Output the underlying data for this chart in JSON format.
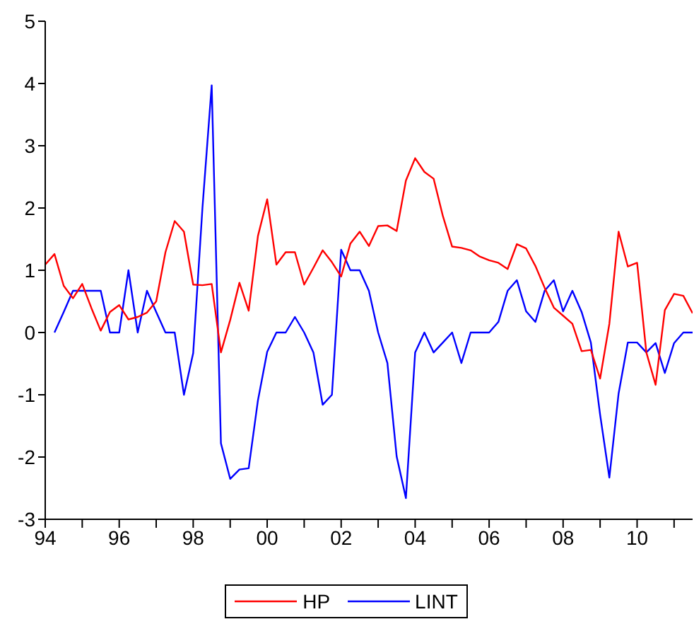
{
  "chart_data": {
    "type": "line",
    "x": [
      1994,
      1994.25,
      1994.5,
      1994.75,
      1995,
      1995.25,
      1995.5,
      1995.75,
      1996,
      1996.25,
      1996.5,
      1996.75,
      1997,
      1997.25,
      1997.5,
      1997.75,
      1998,
      1998.25,
      1998.5,
      1998.75,
      1999,
      1999.25,
      1999.5,
      1999.75,
      2000,
      2000.25,
      2000.5,
      2000.75,
      2001,
      2001.25,
      2001.5,
      2001.75,
      2002,
      2002.25,
      2002.5,
      2002.75,
      2003,
      2003.25,
      2003.5,
      2003.75,
      2004,
      2004.25,
      2004.5,
      2004.75,
      2005,
      2005.25,
      2005.5,
      2005.75,
      2006,
      2006.25,
      2006.5,
      2006.75,
      2007,
      2007.25,
      2007.5,
      2007.75,
      2008,
      2008.25,
      2008.5,
      2008.75,
      2009,
      2009.25,
      2009.5,
      2009.75,
      2010,
      2010.25,
      2010.5,
      2010.75,
      2011,
      2011.25,
      2011.5
    ],
    "series": [
      {
        "name": "LINT",
        "color": "#0000ff",
        "values": [
          null,
          0,
          0.33,
          0.67,
          0.67,
          0.67,
          0.67,
          0,
          0,
          1.0,
          0,
          0.67,
          0.33,
          0,
          0,
          -1.0,
          -0.33,
          2.0,
          3.97,
          -1.78,
          -2.35,
          -2.2,
          -2.18,
          -1.09,
          -0.31,
          0,
          0,
          0.25,
          0,
          -0.32,
          -1.16,
          -1.0,
          1.33,
          1.0,
          1.0,
          0.67,
          0,
          -0.49,
          -1.99,
          -2.66,
          -0.32,
          0,
          -0.32,
          -0.16,
          0,
          -0.49,
          0,
          0,
          0,
          0.17,
          0.67,
          0.84,
          0.34,
          0.17,
          0.67,
          0.84,
          0.34,
          0.67,
          0.33,
          -0.16,
          -1.32,
          -2.33,
          -0.98,
          -0.16,
          -0.16,
          -0.32,
          -0.17,
          -0.65,
          -0.17,
          0,
          0
        ]
      },
      {
        "name": "HP",
        "color": "#ff0000",
        "values": [
          1.09,
          1.26,
          0.75,
          0.55,
          0.78,
          0.39,
          0.03,
          0.33,
          0.44,
          0.21,
          0.25,
          0.32,
          0.5,
          1.29,
          1.79,
          1.62,
          0.77,
          0.76,
          0.78,
          -0.32,
          0.2,
          0.8,
          0.35,
          1.55,
          2.14,
          1.09,
          1.29,
          1.29,
          0.77,
          1.04,
          1.32,
          1.13,
          0.9,
          1.43,
          1.62,
          1.39,
          1.71,
          1.72,
          1.63,
          2.44,
          2.8,
          2.58,
          2.47,
          1.87,
          1.38,
          1.36,
          1.32,
          1.22,
          1.16,
          1.12,
          1.02,
          1.42,
          1.35,
          1.07,
          0.72,
          0.4,
          0.27,
          0.14,
          -0.3,
          -0.28,
          -0.74,
          0.14,
          1.62,
          1.06,
          1.12,
          -0.32,
          -0.84,
          0.36,
          0.62,
          0.59,
          0.31
        ]
      }
    ],
    "xlim": [
      1994,
      2011.5
    ],
    "xticks": [
      {
        "value": 1994,
        "label": "94"
      },
      {
        "value": 1995,
        "label": null
      },
      {
        "value": 1996,
        "label": "96"
      },
      {
        "value": 1997,
        "label": null
      },
      {
        "value": 1998,
        "label": "98"
      },
      {
        "value": 1999,
        "label": null
      },
      {
        "value": 2000,
        "label": "00"
      },
      {
        "value": 2001,
        "label": null
      },
      {
        "value": 2002,
        "label": "02"
      },
      {
        "value": 2003,
        "label": null
      },
      {
        "value": 2004,
        "label": "04"
      },
      {
        "value": 2005,
        "label": null
      },
      {
        "value": 2006,
        "label": "06"
      },
      {
        "value": 2007,
        "label": null
      },
      {
        "value": 2008,
        "label": "08"
      },
      {
        "value": 2009,
        "label": null
      },
      {
        "value": 2010,
        "label": "10"
      },
      {
        "value": 2011,
        "label": null
      }
    ],
    "ylim": [
      -3,
      5
    ],
    "yticks": [
      -3,
      -2,
      -1,
      0,
      1,
      2,
      3,
      4,
      5
    ],
    "grid": false,
    "legend": "bottom",
    "marker": "none",
    "line_style": "solid"
  }
}
